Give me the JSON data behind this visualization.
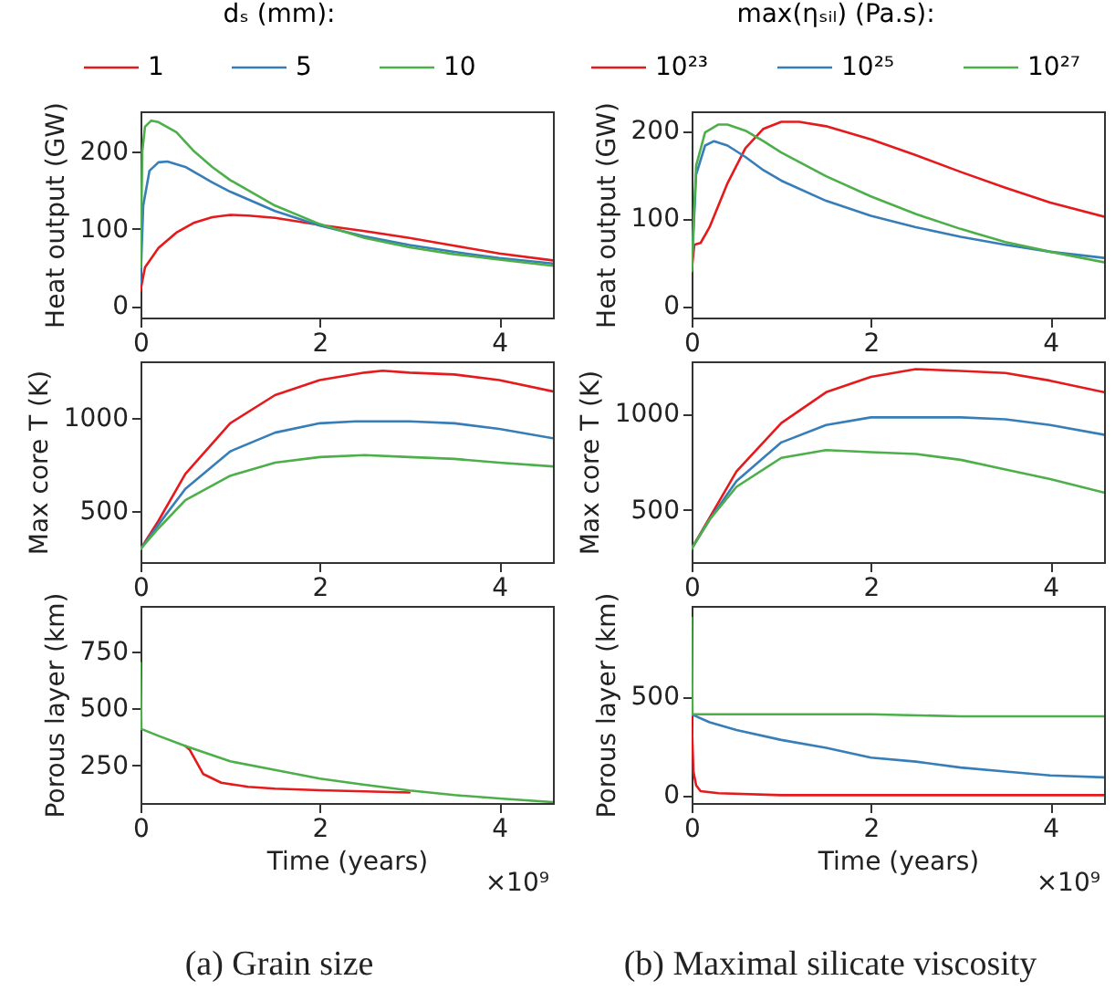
{
  "chart_data": [
    {
      "type": "line",
      "ylabel": "Heat output (GW)",
      "legend_title": "dₛ (mm):",
      "legend": "top",
      "grid": false,
      "xlim": [
        0,
        4.6
      ],
      "xticks": [
        0,
        2,
        4
      ],
      "ylim": [
        -15,
        252
      ],
      "yticks": [
        0,
        100,
        200
      ],
      "series": [
        {
          "name": "1",
          "color": "#e41a1c",
          "x": [
            0,
            0.05,
            0.2,
            0.4,
            0.6,
            0.8,
            1.0,
            1.2,
            1.5,
            2.0,
            2.5,
            3.0,
            3.5,
            4.0,
            4.6
          ],
          "values": [
            20,
            50,
            75,
            95,
            108,
            115,
            118,
            117,
            114,
            105,
            97,
            88,
            78,
            68,
            59
          ]
        },
        {
          "name": "5",
          "color": "#377eb8",
          "x": [
            0,
            0.03,
            0.1,
            0.2,
            0.3,
            0.5,
            0.8,
            1.0,
            1.5,
            2.0,
            2.5,
            3.0,
            3.5,
            4.0,
            4.6
          ],
          "values": [
            30,
            130,
            175,
            186,
            187,
            180,
            160,
            148,
            123,
            104,
            90,
            79,
            70,
            62,
            55
          ]
        },
        {
          "name": "10",
          "color": "#4daf4a",
          "x": [
            0,
            0.02,
            0.05,
            0.12,
            0.2,
            0.4,
            0.6,
            0.8,
            1.0,
            1.5,
            2.0,
            2.5,
            3.0,
            3.5,
            4.0,
            4.6
          ],
          "values": [
            50,
            200,
            232,
            240,
            238,
            225,
            200,
            180,
            163,
            130,
            106,
            88,
            76,
            67,
            60,
            52
          ]
        }
      ]
    },
    {
      "type": "line",
      "ylabel": "Heat output (GW)",
      "legend_title": "max(ηₛᵢₗ) (Pa.s):",
      "legend": "top",
      "grid": false,
      "xlim": [
        0,
        4.6
      ],
      "xticks": [
        0,
        2,
        4
      ],
      "ylim": [
        -13,
        222
      ],
      "yticks": [
        0,
        100,
        200
      ],
      "series": [
        {
          "name": "10²³",
          "color": "#e41a1c",
          "x": [
            0,
            0.03,
            0.1,
            0.2,
            0.4,
            0.6,
            0.8,
            1.0,
            1.2,
            1.5,
            2.0,
            2.5,
            3.0,
            3.5,
            4.0,
            4.6
          ],
          "values": [
            40,
            70,
            72,
            90,
            140,
            180,
            202,
            210,
            210,
            205,
            190,
            172,
            153,
            135,
            118,
            102
          ]
        },
        {
          "name": "10²⁵",
          "color": "#377eb8",
          "x": [
            0,
            0.05,
            0.15,
            0.25,
            0.4,
            0.6,
            0.8,
            1.0,
            1.5,
            2.0,
            2.5,
            3.0,
            3.5,
            4.0,
            4.6
          ],
          "values": [
            40,
            150,
            183,
            188,
            183,
            170,
            155,
            143,
            120,
            103,
            90,
            79,
            70,
            62,
            55
          ]
        },
        {
          "name": "10²⁷",
          "color": "#4daf4a",
          "x": [
            0,
            0.05,
            0.15,
            0.3,
            0.4,
            0.6,
            0.8,
            1.0,
            1.5,
            2.0,
            2.5,
            3.0,
            3.5,
            4.0,
            4.6
          ],
          "values": [
            40,
            160,
            198,
            207,
            207,
            200,
            188,
            175,
            148,
            125,
            105,
            88,
            73,
            62,
            50
          ]
        }
      ]
    },
    {
      "type": "line",
      "ylabel": "Max core T (K)",
      "grid": false,
      "xlim": [
        0,
        4.6
      ],
      "xticks": [
        0,
        2,
        4
      ],
      "ylim": [
        230,
        1300
      ],
      "yticks": [
        500,
        1000
      ],
      "series": [
        {
          "color": "#e41a1c",
          "x": [
            0,
            0.2,
            0.5,
            1.0,
            1.5,
            2.0,
            2.5,
            2.7,
            3.0,
            3.5,
            4.0,
            4.6
          ],
          "values": [
            300,
            450,
            700,
            970,
            1120,
            1200,
            1240,
            1250,
            1240,
            1230,
            1200,
            1140
          ]
        },
        {
          "color": "#377eb8",
          "x": [
            0,
            0.2,
            0.5,
            1.0,
            1.5,
            2.0,
            2.4,
            3.0,
            3.5,
            4.0,
            4.6
          ],
          "values": [
            300,
            430,
            620,
            820,
            920,
            970,
            980,
            980,
            970,
            940,
            890
          ]
        },
        {
          "color": "#4daf4a",
          "x": [
            0,
            0.2,
            0.5,
            1.0,
            1.5,
            2.0,
            2.5,
            3.0,
            3.5,
            4.0,
            4.6
          ],
          "values": [
            300,
            410,
            560,
            690,
            760,
            790,
            800,
            790,
            780,
            760,
            740
          ]
        }
      ]
    },
    {
      "type": "line",
      "ylabel": "Max core T (K)",
      "grid": false,
      "xlim": [
        0,
        4.6
      ],
      "xticks": [
        0,
        2,
        4
      ],
      "ylim": [
        230,
        1270
      ],
      "yticks": [
        500,
        1000
      ],
      "series": [
        {
          "color": "#e41a1c",
          "x": [
            0,
            0.2,
            0.5,
            1.0,
            1.5,
            2.0,
            2.5,
            3.0,
            3.5,
            4.0,
            4.6
          ],
          "values": [
            300,
            460,
            700,
            950,
            1110,
            1190,
            1230,
            1220,
            1210,
            1170,
            1110
          ]
        },
        {
          "color": "#377eb8",
          "x": [
            0,
            0.2,
            0.5,
            1.0,
            1.5,
            2.0,
            2.5,
            3.0,
            3.5,
            4.0,
            4.6
          ],
          "values": [
            300,
            450,
            650,
            850,
            940,
            980,
            980,
            980,
            970,
            940,
            890
          ]
        },
        {
          "color": "#4daf4a",
          "x": [
            0,
            0.2,
            0.5,
            1.0,
            1.5,
            2.0,
            2.5,
            3.0,
            3.5,
            4.0,
            4.6
          ],
          "values": [
            300,
            450,
            620,
            770,
            810,
            800,
            790,
            760,
            710,
            660,
            590
          ]
        }
      ]
    },
    {
      "type": "line",
      "xlabel": "Time (years)",
      "ylabel": "Porous layer (km)",
      "grid": false,
      "xlim": [
        0,
        4.6
      ],
      "xticks": [
        0,
        2,
        4
      ],
      "ylim": [
        85,
        950
      ],
      "yticks": [
        250,
        500,
        750
      ],
      "annotations": [
        "×10⁹",
        "(a) Grain size"
      ],
      "series": [
        {
          "color": "#e41a1c",
          "x": [
            0.5,
            0.55,
            0.7,
            0.9,
            1.2,
            1.5,
            2.0,
            2.5,
            3.0
          ],
          "values": [
            335,
            318,
            212,
            174,
            156,
            148,
            141,
            136,
            131
          ]
        },
        {
          "color": "#4daf4a",
          "x": [
            0,
            0.01,
            0.2,
            0.5,
            1.0,
            1.5,
            2.0,
            2.5,
            3.0,
            3.5,
            4.0,
            4.6
          ],
          "values": [
            700,
            410,
            380,
            335,
            268,
            230,
            192,
            165,
            140,
            120,
            105,
            89
          ]
        }
      ]
    },
    {
      "type": "line",
      "xlabel": "Time (years)",
      "ylabel": "Porous layer (km)",
      "grid": false,
      "xlim": [
        0,
        4.6
      ],
      "xticks": [
        0,
        2,
        4
      ],
      "ylim": [
        -40,
        960
      ],
      "yticks": [
        0,
        500
      ],
      "annotations": [
        "×10⁹",
        "(b) Maximal silicate viscosity"
      ],
      "series": [
        {
          "color": "#e41a1c",
          "x": [
            0,
            0.02,
            0.05,
            0.1,
            0.3,
            1.0,
            2.0,
            4.6
          ],
          "values": [
            400,
            120,
            50,
            20,
            10,
            0,
            0,
            0
          ]
        },
        {
          "color": "#377eb8",
          "x": [
            0,
            0.2,
            0.5,
            1.0,
            1.5,
            2.0,
            2.5,
            3.0,
            3.5,
            4.0,
            4.6
          ],
          "values": [
            410,
            370,
            330,
            280,
            240,
            190,
            170,
            140,
            120,
            100,
            90
          ]
        },
        {
          "color": "#4daf4a",
          "x": [
            0,
            0.01,
            1.0,
            2.0,
            3.0,
            4.0,
            4.6
          ],
          "values": [
            900,
            410,
            410,
            410,
            400,
            400,
            400
          ]
        }
      ]
    }
  ]
}
